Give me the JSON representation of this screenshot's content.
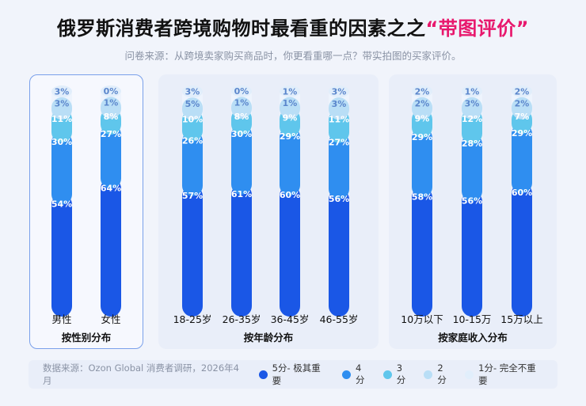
{
  "header": {
    "title_main": "俄罗斯消费者跨境购物时最看重的因素之之",
    "title_highlight": "“带图评价”",
    "subtitle": "问卷来源：从跨境卖家购买商品时，你更看重哪一点？带实拍图的买家评价。"
  },
  "legend": {
    "source": "数据来源：Ozon Global 消费者调研，2026年4月",
    "items": [
      {
        "label": "5分- 极其重要",
        "color": "#1a57e6"
      },
      {
        "label": "4分",
        "color": "#2f8ef0"
      },
      {
        "label": "3分",
        "color": "#5fc6ec"
      },
      {
        "label": "2分",
        "color": "#b9def6"
      },
      {
        "label": "1分- 完全不重要",
        "color": "#e1eefb"
      }
    ]
  },
  "chart_data": {
    "type": "bar",
    "stacked": true,
    "percent": true,
    "segment_order": [
      "5分- 极其重要",
      "4分",
      "3分",
      "2分",
      "1分- 完全不重要"
    ],
    "colors": [
      "#1a57e6",
      "#2f8ef0",
      "#5fc6ec",
      "#b9def6",
      "#e1eefb"
    ],
    "groups": [
      {
        "label": "按性别分布",
        "selected": true,
        "bars": [
          {
            "category": "男性",
            "values": [
              54,
              30,
              11,
              3,
              3
            ]
          },
          {
            "category": "女性",
            "values": [
              64,
              27,
              8,
              1,
              0
            ]
          }
        ]
      },
      {
        "label": "按年龄分布",
        "selected": false,
        "bars": [
          {
            "category": "18-25岁",
            "values": [
              57,
              26,
              10,
              5,
              3
            ]
          },
          {
            "category": "26-35岁",
            "values": [
              61,
              30,
              8,
              1,
              0
            ]
          },
          {
            "category": "36-45岁",
            "values": [
              60,
              29,
              9,
              1,
              1
            ]
          },
          {
            "category": "46-55岁",
            "values": [
              56,
              27,
              11,
              3,
              3
            ]
          }
        ]
      },
      {
        "label": "按家庭收入分布",
        "selected": false,
        "bars": [
          {
            "category": "10万以下",
            "values": [
              58,
              29,
              9,
              2,
              2
            ]
          },
          {
            "category": "10-15万",
            "values": [
              56,
              28,
              12,
              3,
              1
            ]
          },
          {
            "category": "15万以上",
            "values": [
              60,
              29,
              7,
              2,
              2
            ]
          }
        ]
      }
    ]
  }
}
